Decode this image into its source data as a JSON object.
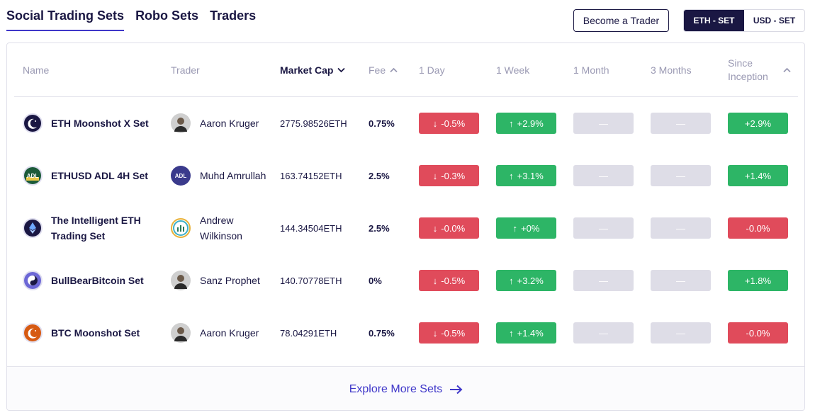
{
  "tabs": [
    {
      "label": "Social Trading Sets",
      "active": true
    },
    {
      "label": "Robo Sets",
      "active": false
    },
    {
      "label": "Traders",
      "active": false
    }
  ],
  "become_trader_label": "Become a Trader",
  "currency_toggle": {
    "options": [
      "ETH - SET",
      "USD - SET"
    ],
    "selected": "ETH - SET"
  },
  "columns": {
    "name": "Name",
    "trader": "Trader",
    "market_cap": "Market Cap",
    "fee": "Fee",
    "day": "1 Day",
    "week": "1 Week",
    "month": "1 Month",
    "months3": "3 Months",
    "since_inception": "Since Inception"
  },
  "sort_icons": {
    "market_cap": "chevron-down-icon",
    "fee": "chevron-up-icon",
    "since_inception": "chevron-up-icon"
  },
  "colors": {
    "accent": "#3f37c9",
    "navy": "#1a1743",
    "negative": "#e04b5b",
    "positive": "#2db566",
    "empty": "#dedde7"
  },
  "rows": [
    {
      "name": "ETH Moonshot X Set",
      "icon": "moon-icon",
      "icon_color": "#1a1743",
      "trader": "Aaron Kruger",
      "avatar": "person-avatar",
      "market_cap": "2775.98526",
      "unit": "ETH",
      "fee": "0.75%",
      "day": "-0.5%",
      "day_dir": "down",
      "week": "+2.9%",
      "week_dir": "up",
      "month": "—",
      "months3": "—",
      "since": "+2.9%",
      "since_dir": "positive"
    },
    {
      "name": "ETHUSD ADL 4H Set",
      "icon": "adl-icon",
      "icon_color": "#1c5b3a",
      "icon_text": "ADL",
      "trader": "Muhd Amrullah",
      "avatar": "adl-avatar",
      "avatar_text": "ADL",
      "market_cap": "163.74152",
      "unit": "ETH",
      "fee": "2.5%",
      "day": "-0.3%",
      "day_dir": "down",
      "week": "+3.1%",
      "week_dir": "up",
      "month": "—",
      "months3": "—",
      "since": "+1.4%",
      "since_dir": "positive"
    },
    {
      "name": "The Intelligent ETH Trading Set",
      "icon": "ethereum-icon",
      "icon_color": "#1a1743",
      "trader": "Andrew Wilkinson",
      "avatar": "chart-avatar",
      "market_cap": "144.34504",
      "unit": "ETH",
      "fee": "2.5%",
      "day": "-0.0%",
      "day_dir": "down",
      "week": "+0%",
      "week_dir": "up",
      "month": "—",
      "months3": "—",
      "since": "-0.0%",
      "since_dir": "negative"
    },
    {
      "name": "BullBearBitcoin Set",
      "icon": "yin-yang-icon",
      "icon_color": "#6c67d6",
      "trader": "Sanz Prophet",
      "avatar": "person-avatar",
      "market_cap": "140.70778",
      "unit": "ETH",
      "fee": "0%",
      "day": "-0.5%",
      "day_dir": "down",
      "week": "+3.2%",
      "week_dir": "up",
      "month": "—",
      "months3": "—",
      "since": "+1.8%",
      "since_dir": "positive"
    },
    {
      "name": "BTC Moonshot Set",
      "icon": "moon-icon",
      "icon_color": "#d65a12",
      "trader": "Aaron Kruger",
      "avatar": "person-avatar",
      "market_cap": "78.04291",
      "unit": "ETH",
      "fee": "0.75%",
      "day": "-0.5%",
      "day_dir": "down",
      "week": "+1.4%",
      "week_dir": "up",
      "month": "—",
      "months3": "—",
      "since": "-0.0%",
      "since_dir": "negative"
    }
  ],
  "explore_label": "Explore More Sets"
}
